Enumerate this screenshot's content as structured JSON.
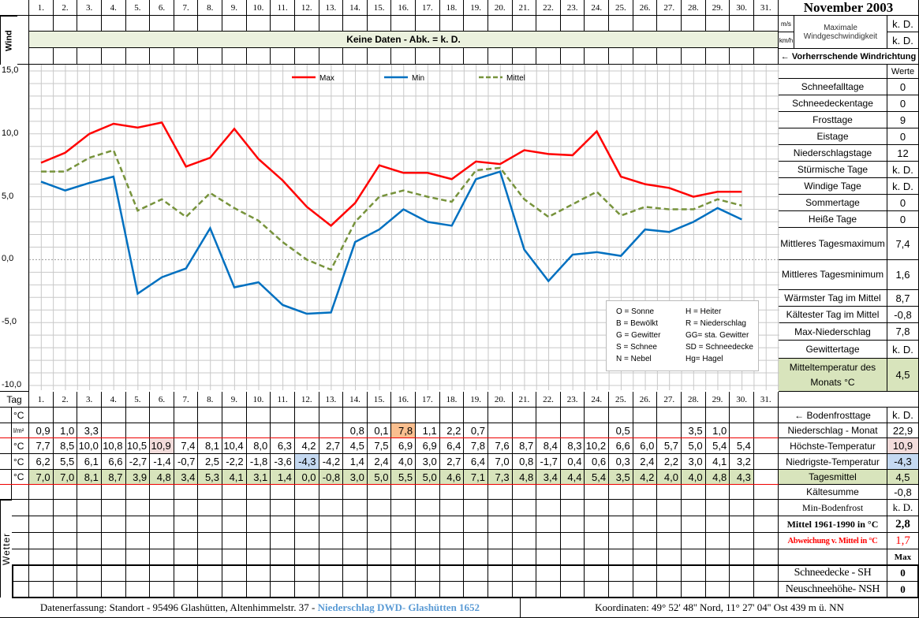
{
  "title": "November 2003",
  "days": [
    "1.",
    "2.",
    "3.",
    "4.",
    "5.",
    "6.",
    "7.",
    "8.",
    "9.",
    "10.",
    "11.",
    "12.",
    "13.",
    "14.",
    "15.",
    "16.",
    "17.",
    "18.",
    "19.",
    "20.",
    "21.",
    "22.",
    "23.",
    "24.",
    "25.",
    "26.",
    "27.",
    "28.",
    "29.",
    "30.",
    "31."
  ],
  "wind": {
    "label": "Wind",
    "no_data": "Keine Daten - Abk. = k. D.",
    "unit_ms": "m/s",
    "unit_kmh": "km/h",
    "max_label_1": "Maximale",
    "max_label_2": "Windgeschwindigkeit",
    "value_ms": "k. D.",
    "value_kmh": "k. D.",
    "direction": "← Vorherrschende Windrichtung"
  },
  "chart_data": {
    "type": "line",
    "x": [
      1,
      2,
      3,
      4,
      5,
      6,
      7,
      8,
      9,
      10,
      11,
      12,
      13,
      14,
      15,
      16,
      17,
      18,
      19,
      20,
      21,
      22,
      23,
      24,
      25,
      26,
      27,
      28,
      29,
      30
    ],
    "ylim": [
      -10,
      15
    ],
    "yticks": [
      "15,0",
      "10,0",
      "5,0",
      "0,0",
      "-5,0",
      "-10,0"
    ],
    "grid": true,
    "legend_position": "top",
    "series": [
      {
        "name": "Max",
        "color": "#ff0000",
        "values": [
          7.7,
          8.5,
          10.0,
          10.8,
          10.5,
          10.9,
          7.4,
          8.1,
          10.4,
          8.0,
          6.3,
          4.2,
          2.7,
          4.5,
          7.5,
          6.9,
          6.9,
          6.4,
          7.8,
          7.6,
          8.7,
          8.4,
          8.3,
          10.2,
          6.6,
          6.0,
          5.7,
          5.0,
          5.4,
          5.4
        ]
      },
      {
        "name": "Min",
        "color": "#0070c0",
        "values": [
          6.2,
          5.5,
          6.1,
          6.6,
          -2.7,
          -1.4,
          -0.7,
          2.5,
          -2.2,
          -1.8,
          -3.6,
          -4.3,
          -4.2,
          1.4,
          2.4,
          4.0,
          3.0,
          2.7,
          6.4,
          7.0,
          0.8,
          -1.7,
          0.4,
          0.6,
          0.3,
          2.4,
          2.2,
          3.0,
          4.1,
          3.2
        ]
      },
      {
        "name": "Mittel",
        "color": "#77933c",
        "dashed": true,
        "values": [
          7.0,
          7.0,
          8.1,
          8.7,
          3.9,
          4.8,
          3.4,
          5.3,
          4.1,
          3.1,
          1.4,
          0.0,
          -0.8,
          3.0,
          5.0,
          5.5,
          5.0,
          4.6,
          7.1,
          7.3,
          4.8,
          3.4,
          4.4,
          5.4,
          3.5,
          4.2,
          4.0,
          4.0,
          4.8,
          4.3
        ]
      }
    ]
  },
  "codes": [
    [
      "O = Sonne",
      "H = Heiter"
    ],
    [
      "B = Bewölkt",
      "R = Niederschlag"
    ],
    [
      "G = Gewitter",
      "GG= sta. Gewitter"
    ],
    [
      "S = Schnee",
      "SD = Schneedecke"
    ],
    [
      "N = Nebel",
      "Hg= Hagel"
    ]
  ],
  "stats_header": "Werte",
  "stats": [
    {
      "label": "Schneefalltage",
      "value": "0"
    },
    {
      "label": "Schneedeckentage",
      "value": "0"
    },
    {
      "label": "Frosttage",
      "value": "9"
    },
    {
      "label": "Eistage",
      "value": "0"
    },
    {
      "label": "Niederschlagstage",
      "value": "12"
    },
    {
      "label": "Stürmische Tage",
      "value": "k. D."
    },
    {
      "label": "Windige Tage",
      "value": "k. D."
    },
    {
      "label": "Sommertage",
      "value": "0"
    },
    {
      "label": "Heiße Tage",
      "value": "0"
    },
    {
      "label": "Mittleres Tagesmaximum",
      "value": "7,4"
    },
    {
      "label": "Mittleres Tagesminimum",
      "value": "1,6"
    },
    {
      "label": "Wärmster Tag im Mittel",
      "value": "8,7"
    },
    {
      "label": "Kältester Tag im Mittel",
      "value": "-0,8"
    },
    {
      "label": "Max-Niederschlag",
      "value": "7,8"
    },
    {
      "label": "Gewittertage",
      "value": "k. D."
    },
    {
      "label": "Mitteltemperatur des Monats °C",
      "value": "4,5"
    }
  ],
  "table": {
    "tag_label": "Tag",
    "rows": [
      {
        "unit": "°C",
        "values": []
      },
      {
        "unit": "l/m²",
        "values": [
          "0,9",
          "1,0",
          "3,3",
          "",
          "",
          "",
          "",
          "",
          "",
          "",
          "",
          "",
          "",
          "0,8",
          "0,1",
          "7,8",
          "1,1",
          "2,2",
          "0,7",
          "",
          "",
          "",
          "",
          "",
          "0,5",
          "",
          "",
          "3,5",
          "1,0",
          "",
          ""
        ]
      },
      {
        "unit": "°C",
        "values": [
          "7,7",
          "8,5",
          "10,0",
          "10,8",
          "10,5",
          "10,9",
          "7,4",
          "8,1",
          "10,4",
          "8,0",
          "6,3",
          "4,2",
          "2,7",
          "4,5",
          "7,5",
          "6,9",
          "6,9",
          "6,4",
          "7,8",
          "7,6",
          "8,7",
          "8,4",
          "8,3",
          "10,2",
          "6,6",
          "6,0",
          "5,7",
          "5,0",
          "5,4",
          "5,4",
          ""
        ]
      },
      {
        "unit": "°C",
        "values": [
          "6,2",
          "5,5",
          "6,1",
          "6,6",
          "-2,7",
          "-1,4",
          "-0,7",
          "2,5",
          "-2,2",
          "-1,8",
          "-3,6",
          "-4,3",
          "-4,2",
          "1,4",
          "2,4",
          "4,0",
          "3,0",
          "2,7",
          "6,4",
          "7,0",
          "0,8",
          "-1,7",
          "0,4",
          "0,6",
          "0,3",
          "2,4",
          "2,2",
          "3,0",
          "4,1",
          "3,2",
          ""
        ]
      },
      {
        "unit": "°C",
        "values": [
          "7,0",
          "7,0",
          "8,1",
          "8,7",
          "3,9",
          "4,8",
          "3,4",
          "5,3",
          "4,1",
          "3,1",
          "1,4",
          "0,0",
          "-0,8",
          "3,0",
          "5,0",
          "5,5",
          "5,0",
          "4,6",
          "7,1",
          "7,3",
          "4,8",
          "3,4",
          "4,4",
          "5,4",
          "3,5",
          "4,2",
          "4,0",
          "4,0",
          "4,8",
          "4,3",
          ""
        ]
      }
    ],
    "wetter_label": "Wetter"
  },
  "summary": [
    {
      "label": "← Bodenfrosttage",
      "value": "k. D."
    },
    {
      "label": "Niederschlag - Monat",
      "value": "22,9"
    },
    {
      "label": "Höchste-Temperatur",
      "value": "10,9"
    },
    {
      "label": "Niedrigste-Temperatur",
      "value": "-4,3"
    },
    {
      "label": "Tagesmittel",
      "value": "4,5"
    },
    {
      "label": "Kältesumme",
      "value": "-0,8"
    },
    {
      "label": "Min-Bodenfrost",
      "value": "k. D."
    },
    {
      "label": "Mittel 1961-1990 in °C",
      "value": "2,8"
    },
    {
      "label": "Abweichung v. Mittel in °C",
      "value": "1,7"
    },
    {
      "label": "",
      "value": "Max"
    },
    {
      "label": "Schneedecke -   SH",
      "value": "0"
    },
    {
      "label": "Neuschneehöhe- NSH",
      "value": "0"
    }
  ],
  "footer": {
    "left": "Datenerfassung:  Standort -  95496  Glashütten, Altenhimmelstr. 37 - ",
    "left_highlight": "Niederschlag DWD- Glashütten 1652",
    "right": "Koordinaten:  49° 52' 48'' Nord,   11° 27' 04'' Ost   439 m ü. NN"
  }
}
